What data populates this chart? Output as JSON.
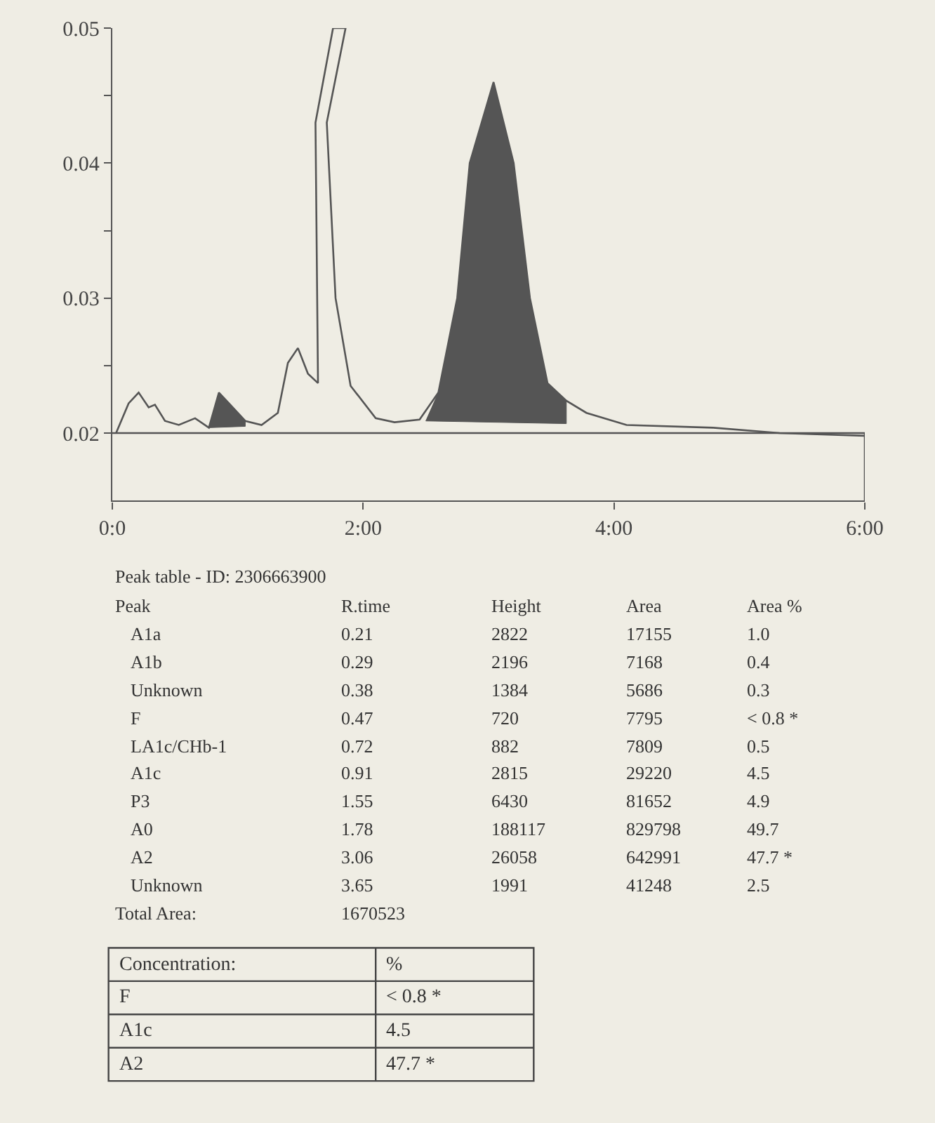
{
  "chart_data": {
    "type": "line",
    "xlim": [
      0,
      6
    ],
    "ylim": [
      0.015,
      0.05
    ],
    "xticks": [
      {
        "value": 0,
        "label": "0:0"
      },
      {
        "value": 2,
        "label": "2:00"
      },
      {
        "value": 4,
        "label": "4:00"
      },
      {
        "value": 6,
        "label": "6:00"
      }
    ],
    "yticks": [
      0.02,
      {
        "value": 0.025,
        "label": null
      },
      0.03,
      {
        "value": 0.035,
        "label": null
      },
      0.04,
      {
        "value": 0.045,
        "label": null
      },
      0.05
    ],
    "grid": false,
    "marker": "none",
    "line_style": "solid",
    "series": [
      {
        "color": "#555555",
        "x": [
          0.03,
          0.13,
          0.21,
          0.29,
          0.34,
          0.42,
          0.53,
          0.66,
          0.77,
          0.85,
          0.93,
          1.06,
          1.19,
          1.32,
          1.4,
          1.48,
          1.56,
          1.64,
          1.62,
          1.76,
          1.86,
          1.71,
          1.78,
          1.9,
          2.1,
          2.25,
          2.45,
          2.6,
          2.75,
          2.85,
          3.04,
          3.2,
          3.33,
          3.47,
          3.62,
          3.78,
          4.1,
          4.79,
          5.32,
          6.0
        ],
        "values": [
          0.02,
          0.0222,
          0.023,
          0.0219,
          0.0221,
          0.0209,
          0.0206,
          0.0211,
          0.0204,
          0.023,
          0.0222,
          0.0209,
          0.0206,
          0.0215,
          0.0252,
          0.0263,
          0.0244,
          0.0237,
          0.043,
          0.05,
          0.05,
          0.043,
          0.03,
          0.0235,
          0.0211,
          0.0208,
          0.021,
          0.023,
          0.03,
          0.04,
          0.046,
          0.04,
          0.03,
          0.0237,
          0.0224,
          0.0215,
          0.0206,
          0.0204,
          0.02,
          0.0198
        ]
      },
      {
        "type": "area",
        "color": "#555555",
        "x": [
          2.5,
          2.6,
          2.75,
          2.85,
          3.04,
          3.2,
          3.33,
          3.47,
          3.62,
          3.62,
          2.5
        ],
        "values": [
          0.0209,
          0.023,
          0.03,
          0.04,
          0.046,
          0.04,
          0.03,
          0.0237,
          0.0224,
          0.0207,
          0.0209
        ]
      },
      {
        "type": "area",
        "color": "#555555",
        "x": [
          0.77,
          0.85,
          0.93,
          1.06,
          1.06,
          0.77
        ],
        "values": [
          0.0204,
          0.023,
          0.0222,
          0.0209,
          0.0205,
          0.0204
        ]
      }
    ],
    "ref_lines": [
      {
        "axis": "y",
        "value": 0.02,
        "label": null,
        "color": "#555555"
      },
      {
        "axis": "x",
        "value": 6,
        "label": null,
        "color": "#555555"
      }
    ],
    "annotations": [
      "Peak table - ID: 2306663900",
      "Peak\tR.time\tHeight\tArea\tArea %",
      "A1a\t0.21\t2822\t17155\t1.0",
      "A1b\t0.29\t2196\t7168\t0.4",
      "Unknown\t0.38\t1384\t5686\t0.3",
      "F\t0.47\t720\t7795\t< 0.8 *",
      "LA1c/CHb-1\t0.72\t882\t7809\t0.5",
      "A1c\t0.91\t2815\t29220\t4.5",
      "P3\t1.55\t6430\t81652\t4.9",
      "A0\t1.78\t188117\t829798\t49.7",
      "A2\t3.06\t26058\t642991\t47.7 *",
      "Unknown\t3.65\t1991\t41248\t2.5",
      "Total Area:\t1670523",
      "Concentration:\t%",
      "F\t< 0.8 *",
      "A1c\t4.5",
      "A2\t47.7 *"
    ]
  }
}
